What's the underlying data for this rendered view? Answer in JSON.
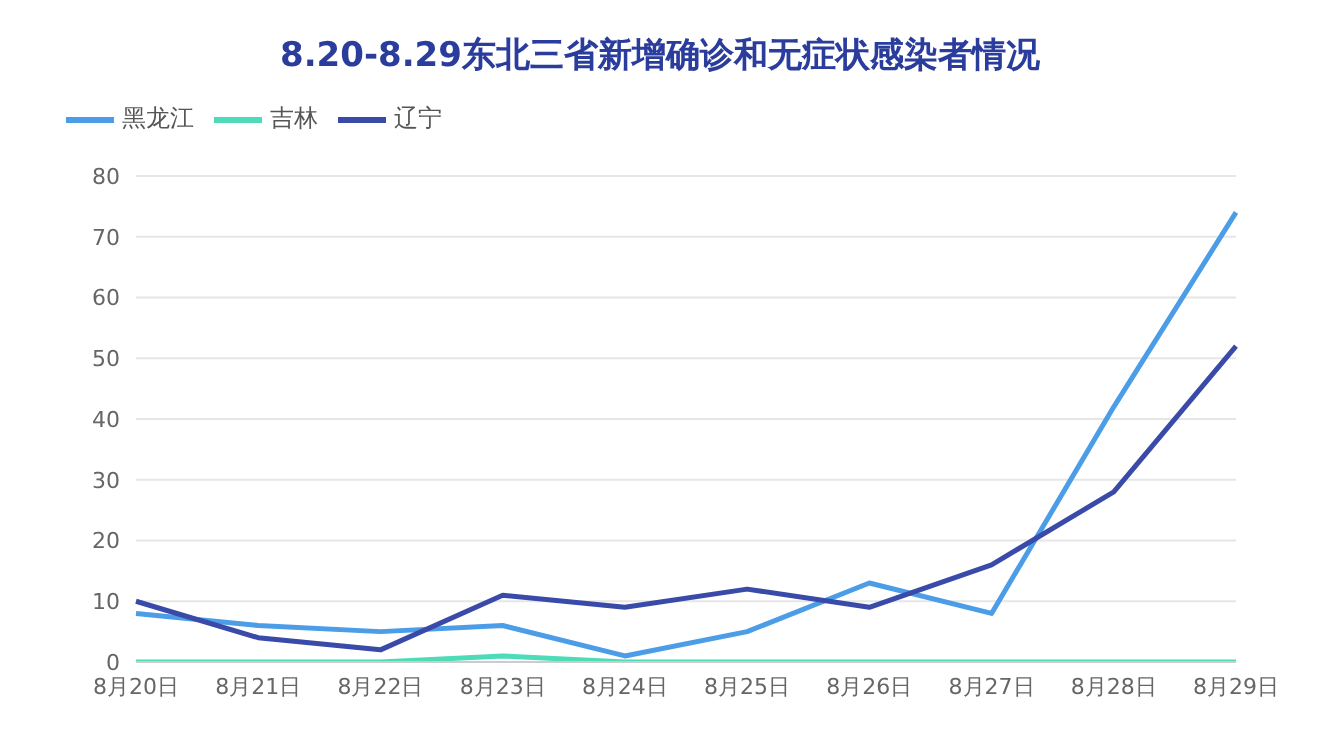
{
  "chart_data": {
    "type": "line",
    "title": "8.20-8.29东北三省新增确诊和无症状感染者情况",
    "categories": [
      "8月20日",
      "8月21日",
      "8月22日",
      "8月23日",
      "8月24日",
      "8月25日",
      "8月26日",
      "8月27日",
      "8月28日",
      "8月29日"
    ],
    "series": [
      {
        "name": "黑龙江",
        "color": "#4a9de6",
        "values": [
          8,
          6,
          5,
          6,
          1,
          5,
          13,
          8,
          42,
          74
        ]
      },
      {
        "name": "吉林",
        "color": "#4ddbb8",
        "values": [
          0,
          0,
          0,
          1,
          0,
          0,
          0,
          0,
          0,
          0
        ]
      },
      {
        "name": "辽宁",
        "color": "#3a4aa8",
        "values": [
          10,
          4,
          2,
          11,
          9,
          12,
          9,
          16,
          28,
          52
        ]
      }
    ],
    "ylim": [
      0,
      80
    ],
    "yticks": [
      0,
      10,
      20,
      30,
      40,
      50,
      60,
      70,
      80
    ],
    "grid": "y",
    "legend": "top left",
    "marker": "none",
    "line_style": "solid"
  }
}
